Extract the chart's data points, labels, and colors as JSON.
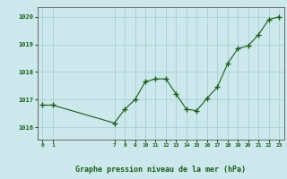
{
  "x": [
    0,
    1,
    7,
    8,
    9,
    10,
    11,
    12,
    13,
    14,
    15,
    16,
    17,
    18,
    19,
    20,
    21,
    22,
    23
  ],
  "y": [
    1016.8,
    1016.8,
    1016.15,
    1016.65,
    1017.0,
    1017.65,
    1017.75,
    1017.75,
    1017.2,
    1016.65,
    1016.6,
    1017.05,
    1017.45,
    1018.3,
    1018.85,
    1018.95,
    1019.35,
    1019.9,
    1020.0
  ],
  "xticks": [
    0,
    1,
    7,
    8,
    9,
    10,
    11,
    12,
    13,
    14,
    15,
    16,
    17,
    18,
    19,
    20,
    21,
    22,
    23
  ],
  "yticks": [
    1016,
    1017,
    1018,
    1019,
    1020
  ],
  "ylim": [
    1015.55,
    1020.35
  ],
  "xlim": [
    -0.5,
    23.5
  ],
  "xlabel": "Graphe pression niveau de la mer (hPa)",
  "line_color": "#1a5c1a",
  "marker": "+",
  "marker_size": 4,
  "bg_color": "#cce8ec",
  "grid_color": "#b0d8dc",
  "text_color": "#1a5c1a",
  "xlabel_color": "#1a5c1a",
  "tick_color": "#1a5c1a"
}
